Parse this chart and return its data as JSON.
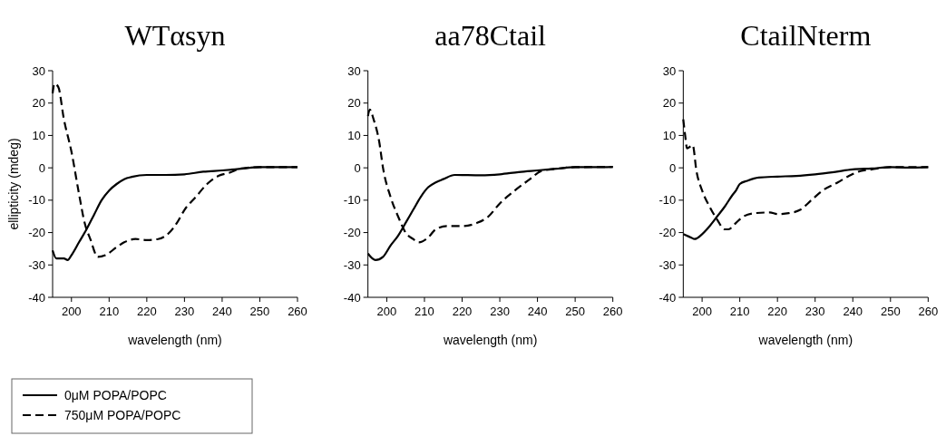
{
  "chart_data": [
    {
      "type": "line",
      "title": "WTαsyn",
      "xlabel": "wavelength (nm)",
      "ylabel": "ellipticity (mdeg)",
      "xlim": [
        195,
        260
      ],
      "xticks": [
        200,
        210,
        220,
        230,
        240,
        250,
        260
      ],
      "ylim": [
        -40,
        30
      ],
      "yticks": [
        -40,
        -30,
        -20,
        -10,
        0,
        10,
        20,
        30
      ],
      "legend": "bottom left",
      "series": [
        {
          "name": "0μM POPA/POPC",
          "color": "#000000",
          "line_style": "solid",
          "x": [
            195,
            196,
            198,
            199,
            200,
            202,
            204,
            206,
            208,
            210,
            212,
            214,
            216,
            220,
            225,
            230,
            235,
            240,
            245,
            250,
            255,
            260
          ],
          "values": [
            -25.5,
            -28,
            -28,
            -28.5,
            -27,
            -23,
            -19,
            -14.5,
            -10,
            -7,
            -5,
            -3.5,
            -2.8,
            -2.2,
            -2.2,
            -2,
            -1.2,
            -0.8,
            -0.3,
            0.2,
            0.2,
            0.2
          ]
        },
        {
          "name": "750μM POPA/POPC",
          "color": "#000000",
          "line_style": "dashed",
          "x": [
            195,
            195.5,
            196.5,
            198,
            200,
            202,
            203.5,
            205,
            207,
            209,
            212,
            214,
            217,
            220,
            223,
            226,
            228,
            230,
            233,
            236,
            239,
            242,
            245,
            250,
            255,
            260
          ],
          "values": [
            23,
            26,
            25,
            15,
            5,
            -8,
            -17,
            -22,
            -27.5,
            -27,
            -24.5,
            -23,
            -22,
            -22.3,
            -22,
            -20,
            -17,
            -13,
            -9,
            -5,
            -2.5,
            -1.5,
            -0.2,
            0.2,
            0.2,
            0.2
          ]
        }
      ]
    },
    {
      "type": "line",
      "title": "aa78Ctail",
      "xlabel": "wavelength (nm)",
      "xlim": [
        195,
        260
      ],
      "xticks": [
        200,
        210,
        220,
        230,
        240,
        250,
        260
      ],
      "ylim": [
        -40,
        30
      ],
      "yticks": [
        -40,
        -30,
        -20,
        -10,
        0,
        10,
        20,
        30
      ],
      "series": [
        {
          "color": "#000000",
          "line_style": "solid",
          "x": [
            195,
            197,
            199,
            201,
            203,
            205,
            207,
            209,
            211,
            213,
            215,
            218,
            225,
            230,
            235,
            240,
            245,
            250,
            255,
            260
          ],
          "values": [
            -26.5,
            -28.5,
            -27.5,
            -24,
            -21,
            -17,
            -13,
            -9,
            -6,
            -4.5,
            -3.5,
            -2.2,
            -2.3,
            -2,
            -1.3,
            -0.8,
            -0.3,
            0.2,
            0.2,
            0.3
          ]
        },
        {
          "color": "#000000",
          "line_style": "dashed",
          "x": [
            195,
            195.5,
            196.5,
            198,
            199,
            201,
            203,
            205,
            207,
            208.5,
            211,
            213,
            216,
            220,
            224,
            227,
            230,
            234,
            238,
            241,
            245,
            250,
            260
          ],
          "values": [
            16,
            18,
            15,
            8,
            0,
            -9,
            -15,
            -20,
            -22,
            -23,
            -21.5,
            -19,
            -18,
            -18,
            -17,
            -15,
            -11,
            -7,
            -3.5,
            -1,
            -0.3,
            0.2,
            0.3
          ]
        }
      ]
    },
    {
      "type": "line",
      "title": "CtailNterm",
      "xlabel": "wavelength (nm)",
      "xlim": [
        195,
        260
      ],
      "xticks": [
        200,
        210,
        220,
        230,
        240,
        250,
        260
      ],
      "ylim": [
        -40,
        30
      ],
      "yticks": [
        -40,
        -30,
        -20,
        -10,
        0,
        10,
        20,
        30
      ],
      "series": [
        {
          "color": "#000000",
          "line_style": "solid",
          "x": [
            195,
            197,
            198,
            200,
            202,
            204,
            206,
            208,
            209,
            210,
            212,
            215,
            220,
            225,
            230,
            235,
            240,
            245,
            250,
            255,
            260
          ],
          "values": [
            -20.5,
            -21.5,
            -22,
            -20.5,
            -18,
            -15,
            -12,
            -8.5,
            -7,
            -5,
            -4,
            -3,
            -2.7,
            -2.5,
            -2,
            -1.3,
            -0.5,
            -0.2,
            0.2,
            0.1,
            0.2
          ]
        },
        {
          "color": "#000000",
          "line_style": "dashed",
          "x": [
            195,
            195.5,
            196,
            197.5,
            198.5,
            200,
            202,
            204,
            206,
            207,
            209,
            211,
            214,
            218,
            220,
            223,
            226,
            229,
            232,
            236,
            239,
            242,
            245,
            250,
            260
          ],
          "values": [
            15,
            10,
            6,
            7,
            -1,
            -7,
            -12,
            -16,
            -19,
            -19,
            -17,
            -15,
            -14,
            -13.8,
            -14.3,
            -14,
            -13,
            -10,
            -7,
            -4.5,
            -2.5,
            -1,
            -0.5,
            0.2,
            0.2
          ]
        }
      ]
    }
  ]
}
